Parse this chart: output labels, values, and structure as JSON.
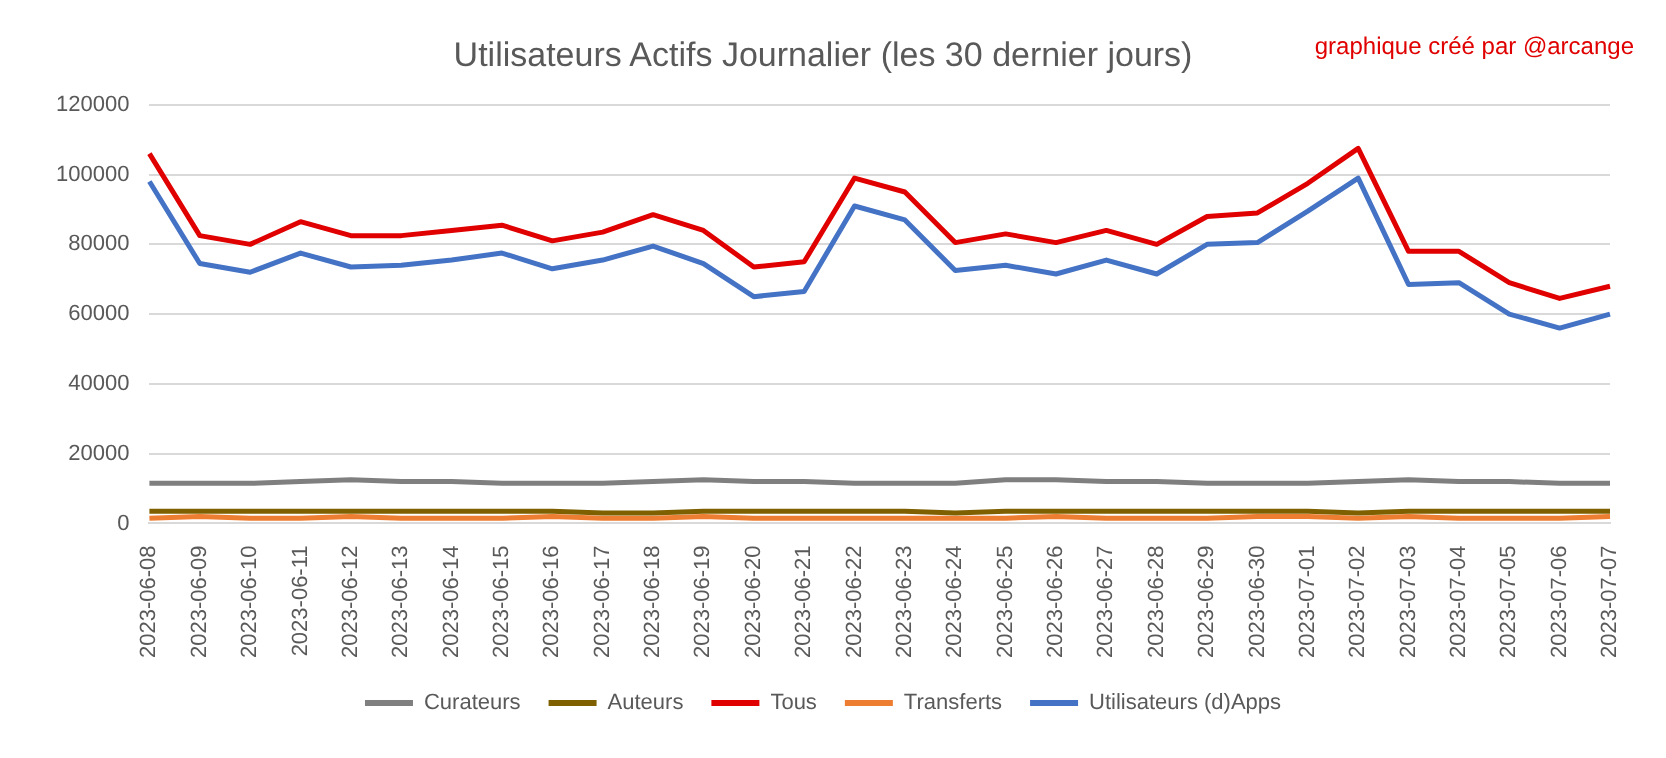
{
  "chart_data": {
    "type": "line",
    "title": "Utilisateurs Actifs Journalier (les 30 dernier jours)",
    "annotations": [
      "graphique créé par @arcange"
    ],
    "categories": [
      "2023-06-08",
      "2023-06-09",
      "2023-06-10",
      "2023-06-11",
      "2023-06-12",
      "2023-06-13",
      "2023-06-14",
      "2023-06-15",
      "2023-06-16",
      "2023-06-17",
      "2023-06-18",
      "2023-06-19",
      "2023-06-20",
      "2023-06-21",
      "2023-06-22",
      "2023-06-23",
      "2023-06-24",
      "2023-06-25",
      "2023-06-26",
      "2023-06-27",
      "2023-06-28",
      "2023-06-29",
      "2023-06-30",
      "2023-07-01",
      "2023-07-02",
      "2023-07-03",
      "2023-07-04",
      "2023-07-05",
      "2023-07-06",
      "2023-07-07"
    ],
    "series": [
      {
        "name": "Curateurs",
        "color": "#7f7f7f",
        "values": [
          11500,
          11500,
          11500,
          12000,
          12500,
          12000,
          12000,
          11500,
          11500,
          11500,
          12000,
          12500,
          12000,
          12000,
          11500,
          11500,
          11500,
          12500,
          12500,
          12000,
          12000,
          11500,
          11500,
          11500,
          12000,
          12500,
          12000,
          12000,
          11500,
          11500
        ]
      },
      {
        "name": "Auteurs",
        "color": "#7f6000",
        "values": [
          3500,
          3500,
          3500,
          3500,
          3500,
          3500,
          3500,
          3500,
          3500,
          3000,
          3000,
          3500,
          3500,
          3500,
          3500,
          3500,
          3000,
          3500,
          3500,
          3500,
          3500,
          3500,
          3500,
          3500,
          3000,
          3500,
          3500,
          3500,
          3500,
          3500
        ]
      },
      {
        "name": "Tous",
        "color": "#e00000",
        "values": [
          106000,
          82500,
          80000,
          86500,
          82500,
          82500,
          84000,
          85500,
          81000,
          83500,
          88500,
          84000,
          73500,
          75000,
          99000,
          95000,
          80500,
          83000,
          80500,
          84000,
          80000,
          88000,
          89000,
          97500,
          107500,
          78000,
          78000,
          69000,
          64500,
          68000
        ]
      },
      {
        "name": "Transferts",
        "color": "#ed7d31",
        "values": [
          1500,
          2000,
          1500,
          1500,
          2000,
          1500,
          1500,
          1500,
          2000,
          1500,
          1500,
          2000,
          1500,
          1500,
          1500,
          1500,
          1500,
          1500,
          2000,
          1500,
          1500,
          1500,
          2000,
          2000,
          1500,
          2000,
          1500,
          1500,
          1500,
          2000
        ]
      },
      {
        "name": "Utilisateurs (d)Apps",
        "color": "#4472c4",
        "values": [
          98000,
          74500,
          72000,
          77500,
          73500,
          74000,
          75500,
          77500,
          73000,
          75500,
          79500,
          74500,
          65000,
          66500,
          91000,
          87000,
          72500,
          74000,
          71500,
          75500,
          71500,
          80000,
          80500,
          89500,
          99000,
          68500,
          69000,
          60000,
          56000,
          60000
        ]
      }
    ],
    "ylim": [
      0,
      120000
    ],
    "yticks": [
      0,
      20000,
      40000,
      60000,
      80000,
      100000,
      120000
    ],
    "grid": "y",
    "legend": "bottom",
    "marker": "none",
    "line_style": "solid"
  }
}
